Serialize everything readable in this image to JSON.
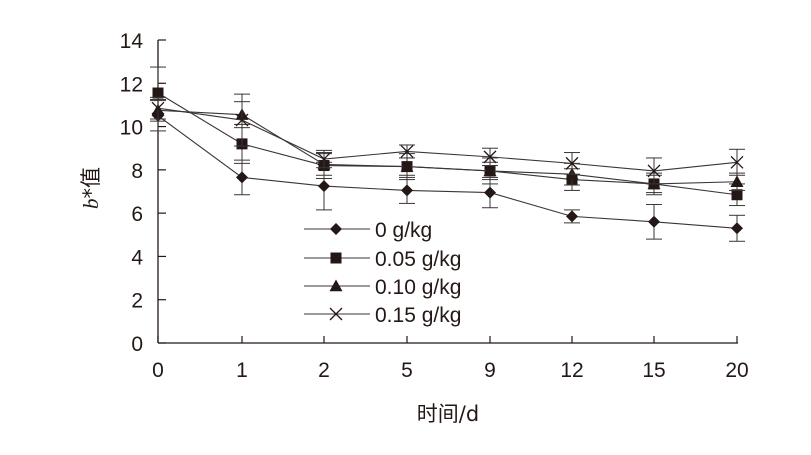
{
  "chart_data": {
    "type": "line",
    "x_axis_title": "时间/d",
    "y_axis_title_italic": "b",
    "y_axis_title_rest": "*值",
    "categories": [
      "0",
      "1",
      "2",
      "5",
      "9",
      "12",
      "15",
      "20"
    ],
    "y_ticks": [
      "0",
      "2",
      "4",
      "6",
      "8",
      "10",
      "12",
      "14"
    ],
    "ylim": [
      0,
      14
    ],
    "grid": false,
    "legend_position": "lower-left inside plot",
    "series": [
      {
        "name": "0 g/kg",
        "marker": "diamond",
        "values": [
          10.5,
          7.65,
          7.25,
          7.05,
          6.95,
          5.85,
          5.6,
          5.3
        ],
        "errors": [
          0.7,
          0.8,
          1.1,
          0.6,
          0.7,
          0.3,
          0.8,
          0.6
        ]
      },
      {
        "name": "0.05 g/kg",
        "marker": "square",
        "values": [
          11.55,
          9.2,
          8.2,
          8.15,
          7.95,
          7.55,
          7.35,
          6.85
        ],
        "errors": [
          1.2,
          0.9,
          0.6,
          0.6,
          0.6,
          0.5,
          0.5,
          0.5
        ]
      },
      {
        "name": "0.10 g/kg",
        "marker": "triangle",
        "values": [
          10.75,
          10.55,
          8.25,
          8.15,
          7.95,
          7.8,
          7.35,
          7.45
        ],
        "errors": [
          0.5,
          0.6,
          0.5,
          0.4,
          0.4,
          0.5,
          0.4,
          0.4
        ]
      },
      {
        "name": "0.15 g/kg",
        "marker": "x",
        "values": [
          10.85,
          10.3,
          8.5,
          8.85,
          8.6,
          8.3,
          7.95,
          8.35
        ],
        "errors": [
          0.5,
          1.2,
          0.4,
          0.3,
          0.4,
          0.5,
          0.6,
          0.6
        ]
      }
    ]
  }
}
